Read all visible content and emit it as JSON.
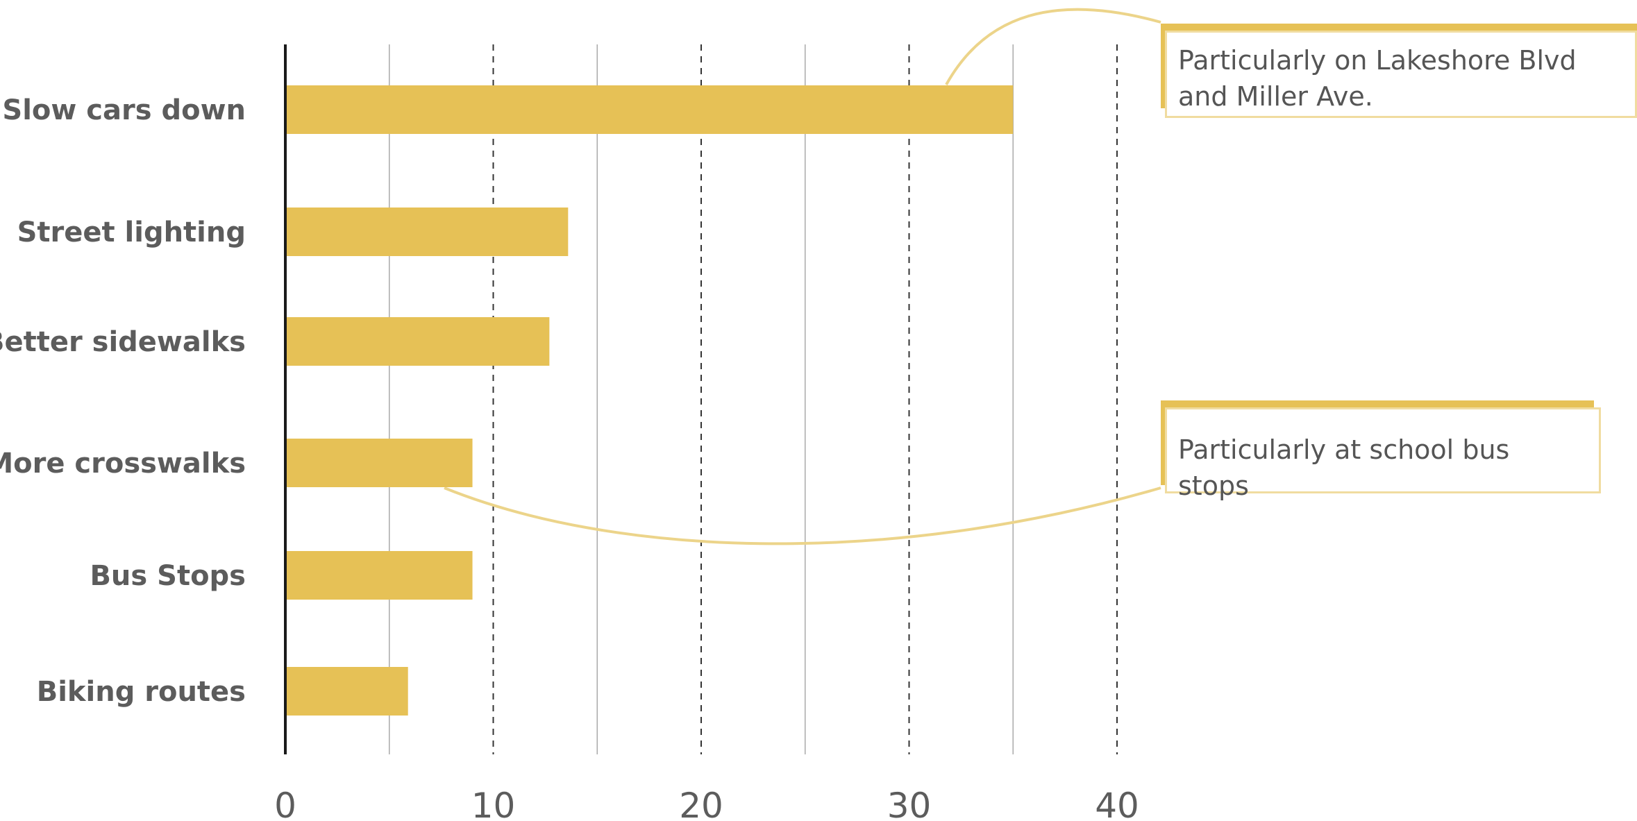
{
  "chart_data": {
    "type": "bar",
    "orientation": "horizontal",
    "title": "",
    "xlabel": "",
    "ylabel": "",
    "categories": [
      "Slow cars down",
      "Street lighting",
      "Better sidewalks",
      "More crosswalks",
      "Bus Stops",
      "Biking routes"
    ],
    "values": [
      35,
      13.6,
      12.7,
      9,
      9,
      5.9
    ],
    "xlim": [
      0,
      40
    ],
    "xticks": [
      "0",
      "10",
      "20",
      "30",
      "40"
    ],
    "grid": "vertical lines: solid at 5, 15, 25, 35; dashed at 10, 20, 30, 40",
    "bar_color": "#e6c156",
    "annotations": [
      {
        "text": "Particularly on Lakeshore Blvd and Miller Ave.",
        "target": "Slow cars down"
      },
      {
        "text": "Particularly at school bus stops",
        "target": "More crosswalks"
      }
    ]
  }
}
